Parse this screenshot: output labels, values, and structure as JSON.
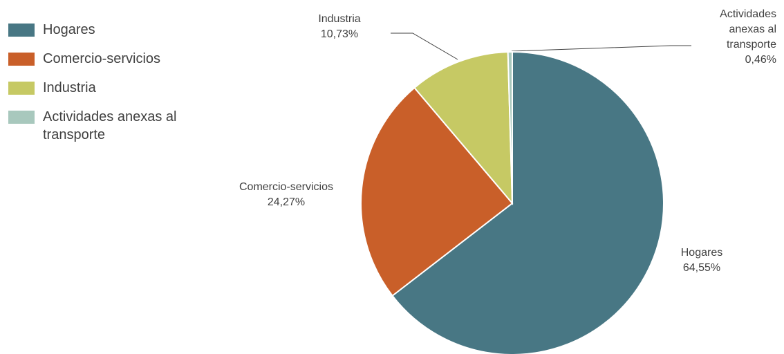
{
  "chart_data": {
    "type": "pie",
    "categories": [
      "Hogares",
      "Comercio-servicios",
      "Industria",
      "Actividades anexas al transporte"
    ],
    "values": [
      64.55,
      24.27,
      10.73,
      0.46
    ],
    "value_labels": [
      "64,55%",
      "24,27%",
      "10,73%",
      "0,46%"
    ],
    "colors": [
      "#487784",
      "#c95f29",
      "#c6c964",
      "#a8c8bd"
    ],
    "legend": "left"
  }
}
